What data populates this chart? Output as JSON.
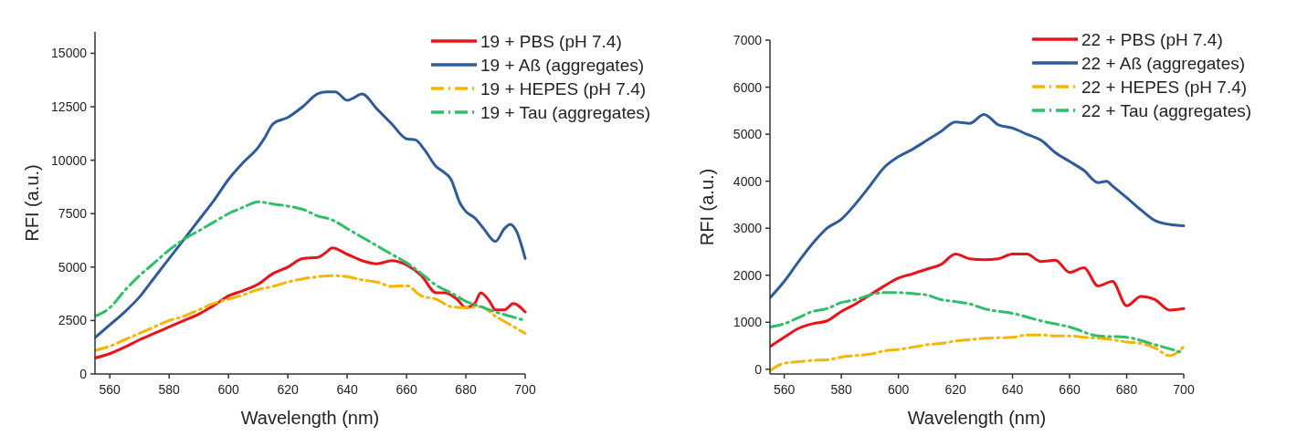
{
  "chart_data": [
    {
      "type": "line",
      "xlabel": "Wavelength (nm)",
      "ylabel": "RFI (a.u.)",
      "xlim": [
        555,
        700
      ],
      "xticks": [
        560,
        580,
        600,
        620,
        640,
        660,
        680,
        700
      ],
      "ylim": [
        0,
        16000
      ],
      "yticks": [
        0,
        2500,
        5000,
        7500,
        10000,
        12500,
        15000
      ],
      "grid": false,
      "legend": "top right",
      "marker": "none",
      "series": [
        {
          "name": "19 + PBS (pH 7.4)",
          "color": "#e8141a",
          "line_style": "solid",
          "x": [
            555,
            560,
            565,
            570,
            575,
            580,
            585,
            590,
            595,
            600,
            605,
            610,
            615,
            620,
            625,
            630,
            633,
            635,
            640,
            645,
            650,
            655,
            660,
            665,
            670,
            673,
            677,
            680,
            683,
            685,
            688,
            690,
            693,
            696,
            700
          ],
          "values": [
            750,
            950,
            1250,
            1600,
            1900,
            2200,
            2500,
            2800,
            3200,
            3650,
            3900,
            4200,
            4700,
            5000,
            5400,
            5450,
            5700,
            5900,
            5600,
            5300,
            5150,
            5300,
            5100,
            4600,
            3800,
            3800,
            3500,
            3100,
            3300,
            3800,
            3400,
            3000,
            3000,
            3300,
            2900
          ]
        },
        {
          "name": "19 + Aß (aggregates)",
          "color": "#2e5b9a",
          "line_style": "solid",
          "x": [
            555,
            560,
            565,
            570,
            575,
            580,
            585,
            590,
            595,
            600,
            605,
            610,
            612,
            615,
            620,
            625,
            630,
            633,
            636,
            640,
            642,
            645,
            650,
            655,
            660,
            663,
            666,
            670,
            672,
            675,
            678,
            680,
            683,
            686,
            690,
            693,
            695,
            697,
            700
          ],
          "values": [
            1700,
            2300,
            2900,
            3600,
            4500,
            5400,
            6300,
            7200,
            8100,
            9100,
            9900,
            10600,
            11000,
            11700,
            12000,
            12500,
            13100,
            13200,
            13200,
            12800,
            12900,
            13100,
            12400,
            11700,
            11000,
            10950,
            10500,
            9700,
            9500,
            9100,
            8000,
            7600,
            7300,
            6800,
            6200,
            6800,
            7000,
            6700,
            5400
          ]
        },
        {
          "name": "19 + HEPES (pH 7.4)",
          "color": "#f7b500",
          "line_style": "dashed",
          "x": [
            555,
            560,
            565,
            570,
            575,
            580,
            585,
            590,
            595,
            600,
            605,
            610,
            615,
            620,
            625,
            630,
            635,
            640,
            645,
            650,
            655,
            660,
            665,
            670,
            675,
            680,
            685,
            690,
            695,
            700
          ],
          "values": [
            1100,
            1300,
            1600,
            1900,
            2200,
            2500,
            2700,
            3000,
            3300,
            3500,
            3700,
            3950,
            4100,
            4300,
            4450,
            4550,
            4600,
            4550,
            4400,
            4300,
            4100,
            4130,
            3650,
            3500,
            3150,
            3100,
            3150,
            2700,
            2300,
            1900
          ]
        },
        {
          "name": "19 + Tau (aggregates)",
          "color": "#2fbf6a",
          "line_style": "dashed",
          "x": [
            555,
            560,
            565,
            570,
            575,
            580,
            585,
            590,
            595,
            600,
            605,
            610,
            615,
            620,
            625,
            630,
            635,
            640,
            645,
            650,
            655,
            660,
            665,
            670,
            675,
            680,
            685,
            690,
            695,
            700
          ],
          "values": [
            2700,
            3100,
            3900,
            4600,
            5200,
            5800,
            6300,
            6700,
            7100,
            7500,
            7800,
            8050,
            7950,
            7850,
            7700,
            7400,
            7200,
            6800,
            6400,
            6000,
            5600,
            5200,
            4700,
            4150,
            3800,
            3400,
            3150,
            2900,
            2700,
            2500
          ]
        }
      ]
    },
    {
      "type": "line",
      "xlabel": "Wavelength (nm)",
      "ylabel": "RFI (a.u.)",
      "xlim": [
        555,
        700
      ],
      "xticks": [
        560,
        580,
        600,
        620,
        640,
        660,
        680,
        700
      ],
      "ylim": [
        -100,
        7000
      ],
      "yticks": [
        0,
        1000,
        2000,
        3000,
        4000,
        5000,
        6000,
        7000
      ],
      "grid": false,
      "legend": "top right",
      "marker": "none",
      "series": [
        {
          "name": "22 + PBS (pH 7.4)",
          "color": "#e8141a",
          "line_style": "solid",
          "x": [
            555,
            560,
            565,
            570,
            575,
            580,
            585,
            590,
            595,
            600,
            605,
            610,
            615,
            620,
            625,
            630,
            635,
            640,
            645,
            650,
            655,
            660,
            665,
            670,
            675,
            680,
            685,
            690,
            695,
            700
          ],
          "values": [
            480,
            680,
            870,
            970,
            1030,
            1230,
            1390,
            1580,
            1770,
            1940,
            2030,
            2130,
            2230,
            2450,
            2350,
            2330,
            2350,
            2450,
            2450,
            2290,
            2320,
            2060,
            2160,
            1770,
            1870,
            1350,
            1550,
            1480,
            1260,
            1290
          ]
        },
        {
          "name": "22 + Aß (aggregates)",
          "color": "#2e5b9a",
          "line_style": "solid",
          "x": [
            555,
            560,
            565,
            570,
            575,
            580,
            585,
            590,
            595,
            600,
            605,
            610,
            615,
            620,
            625,
            630,
            635,
            640,
            645,
            650,
            655,
            660,
            665,
            670,
            673,
            675,
            680,
            685,
            690,
            695,
            700
          ],
          "values": [
            1520,
            1870,
            2290,
            2680,
            3000,
            3190,
            3520,
            3900,
            4290,
            4520,
            4680,
            4870,
            5060,
            5260,
            5230,
            5420,
            5200,
            5130,
            5000,
            4870,
            4610,
            4420,
            4230,
            3970,
            4000,
            3900,
            3650,
            3390,
            3160,
            3080,
            3050
          ]
        },
        {
          "name": "22 + HEPES (pH 7.4)",
          "color": "#f7b500",
          "line_style": "dashed",
          "x": [
            555,
            560,
            565,
            570,
            575,
            580,
            585,
            590,
            595,
            600,
            605,
            610,
            615,
            620,
            625,
            630,
            640,
            645,
            650,
            655,
            660,
            665,
            670,
            675,
            680,
            685,
            690,
            695,
            700
          ],
          "values": [
            -30,
            130,
            160,
            190,
            200,
            260,
            290,
            320,
            390,
            420,
            470,
            520,
            550,
            600,
            630,
            660,
            680,
            730,
            730,
            710,
            710,
            680,
            660,
            630,
            580,
            550,
            450,
            290,
            480
          ]
        },
        {
          "name": "22 + Tau (aggregates)",
          "color": "#2fbf6a",
          "line_style": "dashed",
          "x": [
            555,
            560,
            565,
            570,
            575,
            580,
            585,
            590,
            595,
            600,
            605,
            610,
            615,
            620,
            625,
            630,
            640,
            650,
            660,
            670,
            680,
            690,
            700
          ],
          "values": [
            900,
            970,
            1100,
            1230,
            1290,
            1420,
            1480,
            1580,
            1630,
            1630,
            1610,
            1580,
            1480,
            1440,
            1390,
            1290,
            1190,
            1030,
            900,
            710,
            680,
            520,
            350
          ]
        }
      ]
    }
  ]
}
